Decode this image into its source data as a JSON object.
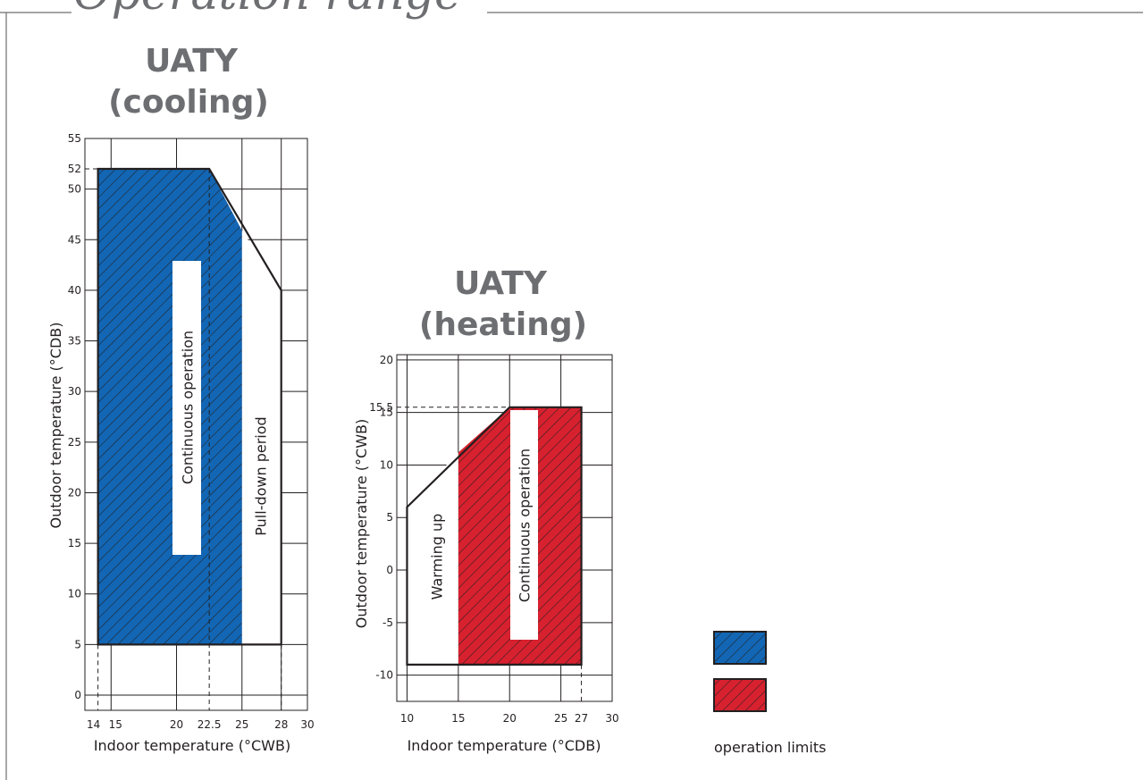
{
  "header": {
    "title": "Operation range"
  },
  "charts": [
    {
      "id": "cooling",
      "title_line1": "UATY",
      "title_line2": "(cooling)",
      "xlabel": "Indoor temperature (°CWB)",
      "ylabel": "Outdoor temperature (°CDB)",
      "x_ticks": [
        "14",
        "15",
        "20",
        "22.5",
        "25",
        "28",
        "30"
      ],
      "y_ticks": [
        "0",
        "5",
        "10",
        "15",
        "20",
        "25",
        "30",
        "35",
        "40",
        "45",
        "50",
        "52",
        "55"
      ],
      "region_labels": {
        "continuous": "Continuous operation",
        "secondary": "Pull-down period"
      }
    },
    {
      "id": "heating",
      "title_line1": "UATY",
      "title_line2": "(heating)",
      "xlabel": "Indoor temperature (°CDB)",
      "ylabel": "Outdoor temperature (°CWB)",
      "x_ticks": [
        "10",
        "15",
        "20",
        "25",
        "27",
        "30"
      ],
      "y_ticks": [
        "-10",
        "-5",
        "0",
        "5",
        "10",
        "15",
        "15.5",
        "20"
      ],
      "region_labels": {
        "continuous": "Continuous operation",
        "secondary": "Warming up"
      }
    }
  ],
  "legend": {
    "label": "operation limits",
    "colors": [
      "#1266b4",
      "#d7212f"
    ]
  },
  "chart_data": [
    {
      "type": "area",
      "title": "UATY (cooling)",
      "xlabel": "Indoor temperature (°CWB)",
      "ylabel": "Outdoor temperature (°CDB)",
      "xlim": [
        13,
        30
      ],
      "ylim": [
        -1.5,
        55
      ],
      "grid": true,
      "x_ticks": [
        14,
        15,
        20,
        22.5,
        25,
        28,
        30
      ],
      "y_ticks": [
        0,
        5,
        10,
        15,
        20,
        25,
        30,
        35,
        40,
        45,
        50,
        52,
        55
      ],
      "series": [
        {
          "name": "Continuous operation",
          "color": "#1266b4",
          "hatched": true,
          "x": [
            14,
            22.5,
            25,
            25,
            14
          ],
          "y": [
            52,
            52,
            45.9,
            5,
            5
          ]
        },
        {
          "name": "Pull-down period",
          "color": "#ffffff",
          "hatched": false,
          "x": [
            25,
            28,
            28,
            25
          ],
          "y": [
            45.9,
            40,
            5,
            5
          ]
        }
      ],
      "envelope": {
        "x": [
          14,
          22.5,
          28,
          28,
          14
        ],
        "y": [
          52,
          52,
          40,
          5,
          5
        ]
      },
      "dashed_guides": [
        {
          "x": [
            13,
            14
          ],
          "y": [
            52,
            52
          ]
        },
        {
          "x": [
            14,
            14
          ],
          "y": [
            5,
            -1.5
          ]
        },
        {
          "x": [
            22.5,
            22.5
          ],
          "y": [
            52,
            -1.5
          ]
        },
        {
          "x": [
            28,
            28
          ],
          "y": [
            5,
            -1.5
          ]
        }
      ]
    },
    {
      "type": "area",
      "title": "UATY (heating)",
      "xlabel": "Indoor temperature (°CDB)",
      "ylabel": "Outdoor temperature (°CWB)",
      "xlim": [
        9,
        30
      ],
      "ylim": [
        -12.5,
        20.5
      ],
      "grid": true,
      "x_ticks": [
        10,
        15,
        20,
        25,
        27,
        30
      ],
      "y_ticks": [
        -10,
        -5,
        0,
        5,
        10,
        15,
        15.5,
        20
      ],
      "series": [
        {
          "name": "Continuous operation",
          "color": "#d7212f",
          "hatched": true,
          "x": [
            15,
            20,
            27,
            27,
            15
          ],
          "y": [
            11.2,
            15.5,
            15.5,
            -9,
            -9
          ]
        },
        {
          "name": "Warming up",
          "color": "#ffffff",
          "hatched": false,
          "x": [
            10,
            15,
            15,
            10
          ],
          "y": [
            6,
            11.2,
            -9,
            -9
          ]
        }
      ],
      "envelope": {
        "x": [
          10,
          20,
          27,
          27,
          10
        ],
        "y": [
          6,
          15.5,
          15.5,
          -9,
          -9
        ]
      },
      "dashed_guides": [
        {
          "x": [
            9,
            20
          ],
          "y": [
            15.5,
            15.5
          ]
        },
        {
          "x": [
            27,
            27
          ],
          "y": [
            -9,
            -12.5
          ]
        }
      ]
    }
  ]
}
